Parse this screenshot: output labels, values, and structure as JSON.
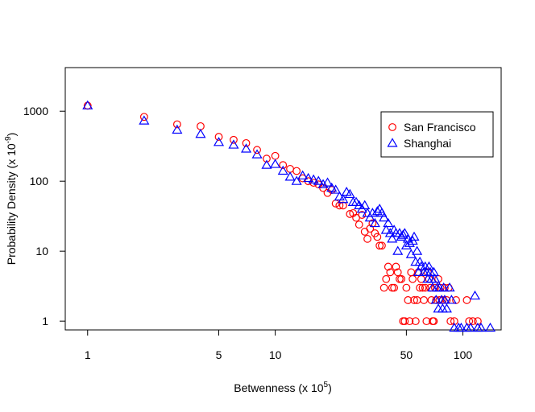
{
  "chart_data": {
    "type": "scatter",
    "xlabel": "Betwenness (x 10",
    "xlabel_sup": "5",
    "xlabel_end": ")",
    "ylabel": "Probability Density (x 10",
    "ylabel_sup": "-9",
    "ylabel_end": ")",
    "xscale": "log",
    "yscale": "log",
    "xlim": [
      0.76,
      160
    ],
    "ylim": [
      0.75,
      4200
    ],
    "x_ticks": [
      1,
      5,
      10,
      50,
      100
    ],
    "x_tick_labels": [
      "1",
      "5",
      "10",
      "50",
      "100"
    ],
    "y_ticks": [
      1,
      10,
      100,
      1000
    ],
    "y_tick_labels": [
      "1",
      "10",
      "100",
      "1000"
    ],
    "legend_position": "top-right",
    "series": [
      {
        "name": "San Francisco",
        "marker": "circle",
        "color": "#ff0000",
        "points": [
          [
            1.0,
            1200
          ],
          [
            2.0,
            830
          ],
          [
            3.0,
            650
          ],
          [
            4.0,
            610
          ],
          [
            5.0,
            430
          ],
          [
            6.0,
            390
          ],
          [
            7.0,
            350
          ],
          [
            8.0,
            280
          ],
          [
            9.0,
            210
          ],
          [
            10.0,
            230
          ],
          [
            11.0,
            170
          ],
          [
            12.0,
            150
          ],
          [
            13.0,
            140
          ],
          [
            14.0,
            110
          ],
          [
            15.0,
            100
          ],
          [
            16.0,
            95
          ],
          [
            17.0,
            90
          ],
          [
            18.0,
            80
          ],
          [
            19.0,
            68
          ],
          [
            20.0,
            75
          ],
          [
            21.0,
            48
          ],
          [
            22.0,
            45
          ],
          [
            23.0,
            45
          ],
          [
            25.0,
            34
          ],
          [
            26.0,
            35
          ],
          [
            27.0,
            30
          ],
          [
            28.0,
            24
          ],
          [
            29.0,
            33
          ],
          [
            30.0,
            19
          ],
          [
            31.0,
            15
          ],
          [
            32.0,
            21
          ],
          [
            33.0,
            25
          ],
          [
            34.0,
            18
          ],
          [
            35.0,
            16
          ],
          [
            36.0,
            12
          ],
          [
            37.0,
            12
          ],
          [
            38.0,
            3.0
          ],
          [
            39.0,
            4.0
          ],
          [
            40.0,
            6.0
          ],
          [
            41.0,
            5.0
          ],
          [
            42.0,
            3.0
          ],
          [
            43.0,
            3.0
          ],
          [
            44.0,
            6.0
          ],
          [
            45.0,
            5.0
          ],
          [
            46.0,
            4.0
          ],
          [
            47.0,
            4.0
          ],
          [
            48.0,
            1.0
          ],
          [
            49.0,
            1.0
          ],
          [
            50.0,
            3.0
          ],
          [
            51.0,
            2.0
          ],
          [
            52.0,
            1.0
          ],
          [
            53.0,
            5.0
          ],
          [
            54.0,
            4.0
          ],
          [
            55.0,
            2.0
          ],
          [
            56.0,
            1.0
          ],
          [
            57.0,
            2.0
          ],
          [
            58.0,
            5.0
          ],
          [
            59.0,
            3.0
          ],
          [
            60.0,
            4.0
          ],
          [
            61.0,
            3.0
          ],
          [
            62.0,
            2.0
          ],
          [
            63.0,
            3.0
          ],
          [
            64.0,
            1.0
          ],
          [
            65.0,
            5.0
          ],
          [
            66.0,
            4.0
          ],
          [
            67.0,
            3.0
          ],
          [
            68.0,
            2.0
          ],
          [
            69.0,
            1.0
          ],
          [
            70.0,
            1.0
          ],
          [
            71.0,
            3.0
          ],
          [
            72.0,
            2.0
          ],
          [
            74.0,
            4.0
          ],
          [
            75.0,
            2.0
          ],
          [
            76.0,
            3.0
          ],
          [
            78.0,
            2.0
          ],
          [
            80.0,
            3.0
          ],
          [
            82.0,
            2.0
          ],
          [
            84.0,
            3.0
          ],
          [
            86.0,
            1.0
          ],
          [
            90.0,
            1.0
          ],
          [
            92.0,
            2.0
          ],
          [
            105.0,
            2.0
          ],
          [
            108.0,
            1.0
          ],
          [
            113.0,
            1.0
          ],
          [
            120.0,
            1.0
          ]
        ]
      },
      {
        "name": "Shanghai",
        "marker": "triangle",
        "color": "#0000ff",
        "points": [
          [
            1.0,
            1200
          ],
          [
            2.0,
            730
          ],
          [
            3.0,
            540
          ],
          [
            4.0,
            470
          ],
          [
            5.0,
            360
          ],
          [
            6.0,
            330
          ],
          [
            7.0,
            290
          ],
          [
            8.0,
            240
          ],
          [
            9.0,
            170
          ],
          [
            10.0,
            175
          ],
          [
            11.0,
            140
          ],
          [
            12.0,
            115
          ],
          [
            13.0,
            100
          ],
          [
            14.0,
            120
          ],
          [
            15.0,
            110
          ],
          [
            16.0,
            105
          ],
          [
            17.0,
            100
          ],
          [
            18.0,
            90
          ],
          [
            19.0,
            95
          ],
          [
            20.0,
            80
          ],
          [
            21.0,
            75
          ],
          [
            22.0,
            60
          ],
          [
            23.0,
            55
          ],
          [
            24.0,
            70
          ],
          [
            25.0,
            65
          ],
          [
            26.0,
            50
          ],
          [
            27.0,
            50
          ],
          [
            28.0,
            45
          ],
          [
            29.0,
            40
          ],
          [
            30.0,
            45
          ],
          [
            31.0,
            35
          ],
          [
            32.0,
            30
          ],
          [
            33.0,
            35
          ],
          [
            34.0,
            25
          ],
          [
            35.0,
            37
          ],
          [
            36.0,
            40
          ],
          [
            37.0,
            35
          ],
          [
            38.0,
            30
          ],
          [
            39.0,
            20
          ],
          [
            40.0,
            25
          ],
          [
            41.0,
            18
          ],
          [
            42.0,
            15
          ],
          [
            43.0,
            20
          ],
          [
            44.0,
            18
          ],
          [
            45.0,
            10
          ],
          [
            46.0,
            18
          ],
          [
            47.0,
            16
          ],
          [
            48.0,
            17
          ],
          [
            49.0,
            18
          ],
          [
            50.0,
            12
          ],
          [
            51.0,
            15
          ],
          [
            52.0,
            13
          ],
          [
            53.0,
            9
          ],
          [
            54.0,
            14
          ],
          [
            55.0,
            16
          ],
          [
            56.0,
            7
          ],
          [
            57.0,
            10
          ],
          [
            58.0,
            5
          ],
          [
            59.0,
            7
          ],
          [
            60.0,
            6
          ],
          [
            62.0,
            5
          ],
          [
            63.0,
            6
          ],
          [
            64.0,
            5
          ],
          [
            65.0,
            4
          ],
          [
            66.0,
            6
          ],
          [
            67.0,
            5
          ],
          [
            68.0,
            4
          ],
          [
            69.0,
            3
          ],
          [
            70.0,
            5
          ],
          [
            71.0,
            4
          ],
          [
            72.0,
            2
          ],
          [
            73.0,
            3
          ],
          [
            74.0,
            1.5
          ],
          [
            75.0,
            3
          ],
          [
            77.0,
            2
          ],
          [
            78.0,
            1.5
          ],
          [
            79.0,
            3
          ],
          [
            80.0,
            2
          ],
          [
            82.0,
            1.5
          ],
          [
            85.0,
            3
          ],
          [
            87.0,
            2
          ],
          [
            90.0,
            0.8
          ],
          [
            95.0,
            0.8
          ],
          [
            98.0,
            0.8
          ],
          [
            105.0,
            0.8
          ],
          [
            110.0,
            0.8
          ],
          [
            116.0,
            2.3
          ],
          [
            120.0,
            0.8
          ],
          [
            125.0,
            0.8
          ],
          [
            140.0,
            0.8
          ]
        ]
      }
    ]
  }
}
